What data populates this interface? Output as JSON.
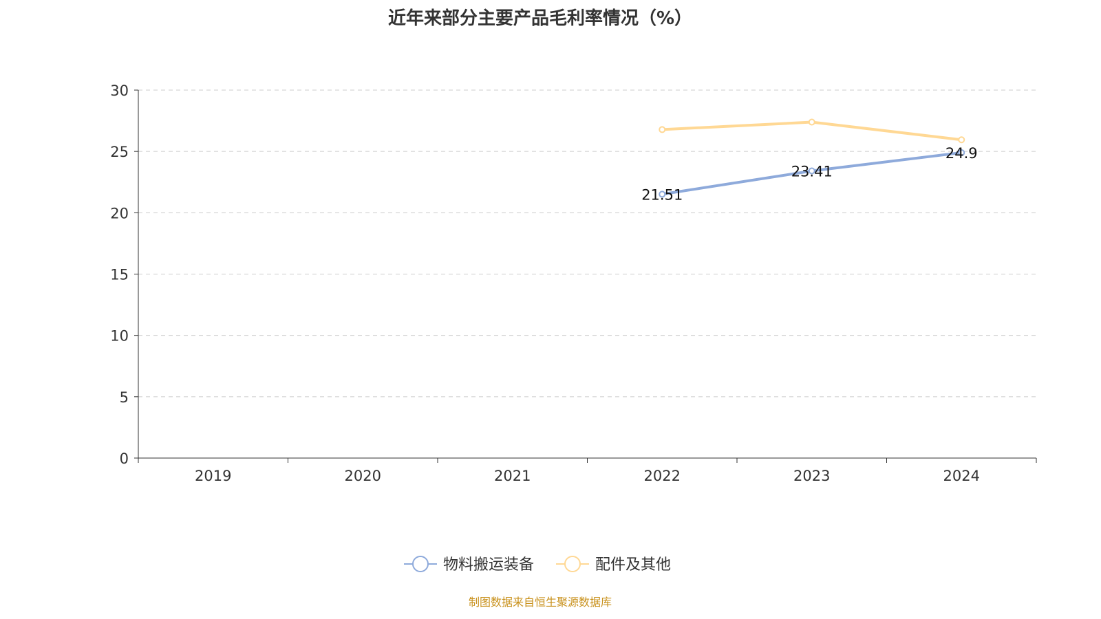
{
  "chart_data": {
    "type": "line",
    "title": "近年来部分主要产品毛利率情况（%）",
    "categories": [
      "2019",
      "2020",
      "2021",
      "2022",
      "2023",
      "2024"
    ],
    "ylim": [
      0,
      30
    ],
    "yticks": [
      0,
      5,
      10,
      15,
      20,
      25,
      30
    ],
    "grid": true,
    "legend_position": "bottom",
    "series": [
      {
        "name": "物料搬运装备",
        "color": "#8eaadb",
        "values": [
          null,
          null,
          null,
          21.51,
          23.41,
          24.9
        ],
        "labels": [
          "",
          "",
          "",
          "21.51",
          "23.41",
          "24.9"
        ]
      },
      {
        "name": "配件及其他",
        "color": "#ffd894",
        "values": [
          null,
          null,
          null,
          26.78,
          27.39,
          25.95
        ],
        "labels": [
          "",
          "",
          "",
          "",
          "",
          ""
        ]
      }
    ],
    "source": "制图数据来自恒生聚源数据库"
  }
}
